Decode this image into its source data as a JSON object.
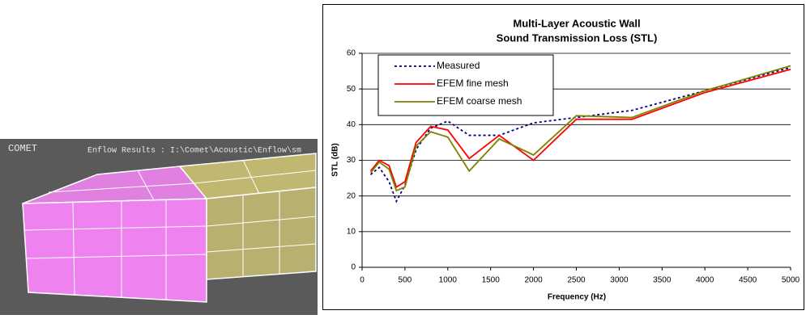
{
  "screenshot": {
    "logo": "COMET",
    "caption": "Enflow Results  : I:\\Comet\\Acoustic\\Enflow\\sm"
  },
  "chart_data": {
    "type": "line",
    "title": [
      "Multi-Layer Acoustic Wall",
      "Sound Transmission Loss (STL)"
    ],
    "x_label": "Frequency (Hz)",
    "y_label": "STL (dB)",
    "x": [
      100,
      200,
      315,
      400,
      500,
      630,
      800,
      1000,
      1250,
      1600,
      2000,
      2500,
      3150,
      4000,
      5000
    ],
    "series": [
      {
        "name": "Measured",
        "color": "#000080",
        "dash": true,
        "values": [
          26,
          28,
          24,
          18.5,
          23,
          33,
          39,
          41,
          37,
          37,
          40.5,
          42,
          44,
          49.5,
          56
        ]
      },
      {
        "name": "EFEM fine mesh",
        "color": "#ff0000",
        "dash": false,
        "values": [
          27,
          30,
          28.5,
          22.5,
          24,
          35,
          39.5,
          38.5,
          30.5,
          37,
          30,
          41.5,
          41.5,
          49,
          55.5
        ]
      },
      {
        "name": "EFEM coarse mesh",
        "color": "#808000",
        "dash": false,
        "values": [
          26.5,
          29.5,
          27.5,
          21.5,
          22.5,
          34,
          38,
          36.5,
          27,
          36,
          31.5,
          42.5,
          42,
          49.5,
          56.5
        ]
      }
    ],
    "xlim": [
      0,
      5000
    ],
    "xticks": [
      0,
      500,
      1000,
      1500,
      2000,
      2500,
      3000,
      3500,
      4000,
      4500,
      5000
    ],
    "ylim": [
      0,
      60
    ],
    "yticks": [
      0,
      10,
      20,
      30,
      40,
      50,
      60
    ],
    "grid": true,
    "legend": "top-left"
  }
}
